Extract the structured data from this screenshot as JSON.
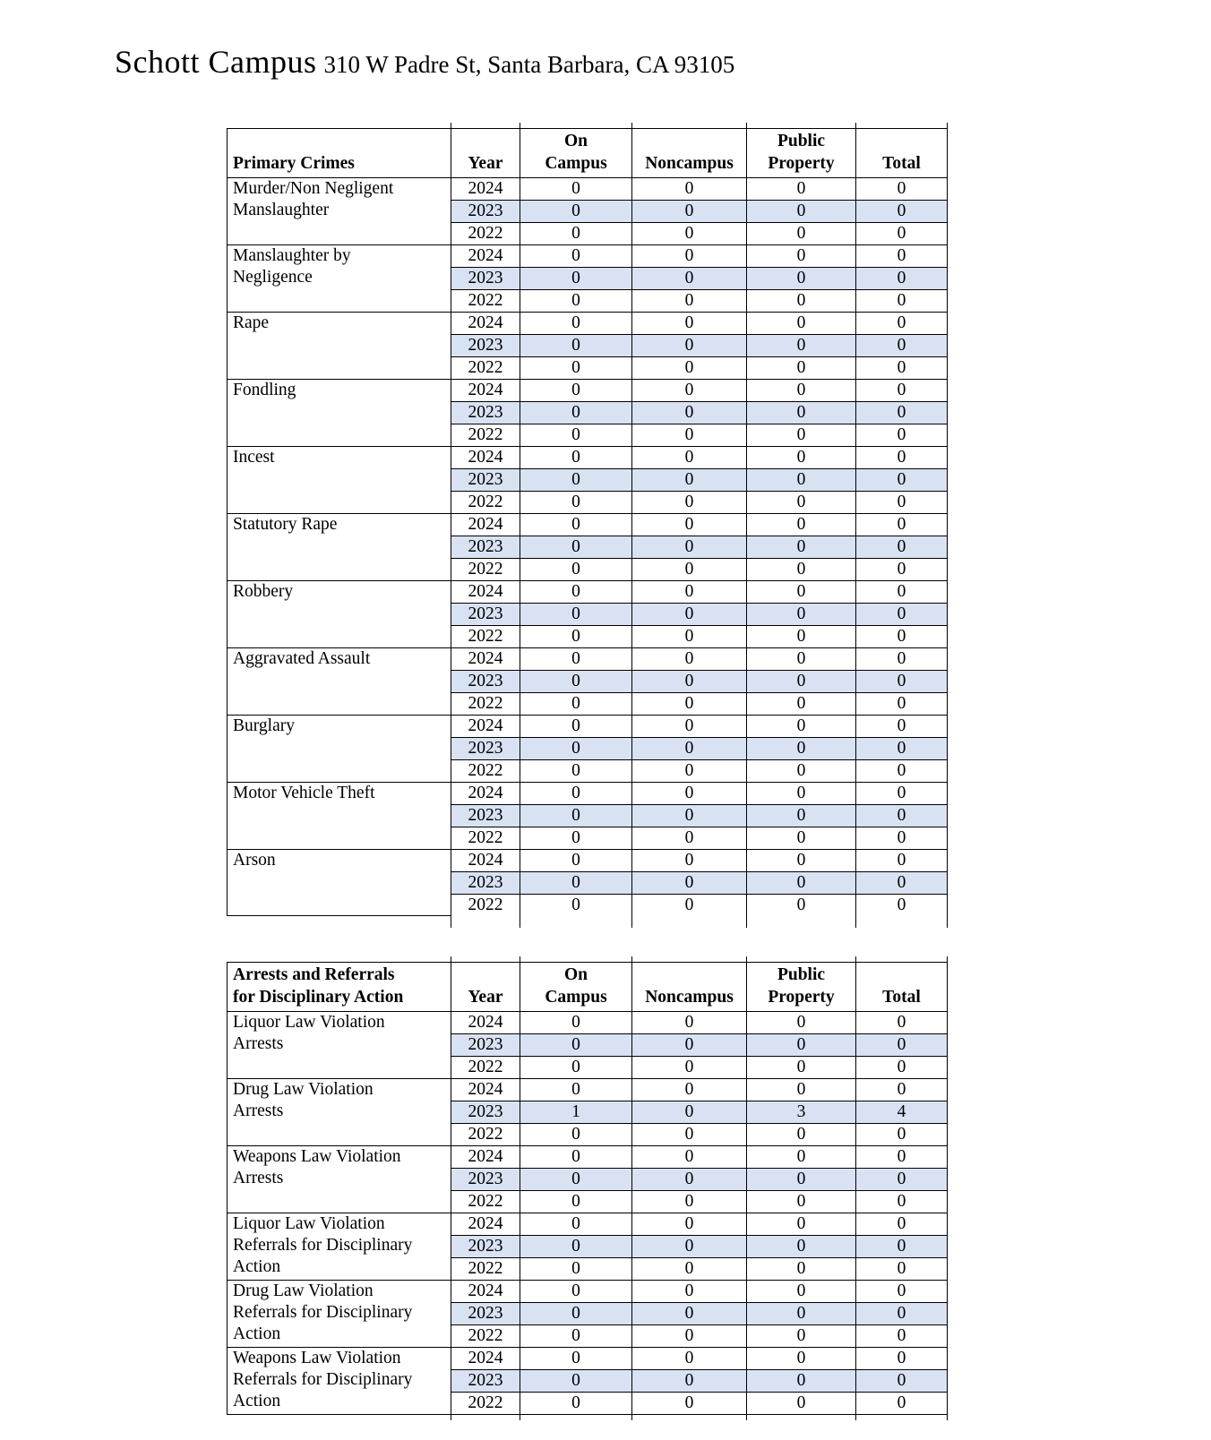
{
  "page_title": {
    "campus_name": "Schott Campus",
    "campus_address": "310 W Padre St, Santa Barbara, CA 93105"
  },
  "column_headers": [
    "Year",
    "On\nCampus",
    "Noncampus",
    "Public\nProperty",
    "Total"
  ],
  "colors": {
    "row_shade": "#d9e2f3",
    "border": "#000000",
    "text": "#000000"
  },
  "tables": [
    {
      "name": "primary-crimes",
      "row_header": "Primary Crimes",
      "groups": [
        {
          "category": "Murder/Non Negligent\nManslaughter",
          "rows": [
            [
              "2024",
              "0",
              "0",
              "0",
              "0"
            ],
            [
              "2023",
              "0",
              "0",
              "0",
              "0"
            ],
            [
              "2022",
              "0",
              "0",
              "0",
              "0"
            ]
          ]
        },
        {
          "category": "Manslaughter by\nNegligence",
          "rows": [
            [
              "2024",
              "0",
              "0",
              "0",
              "0"
            ],
            [
              "2023",
              "0",
              "0",
              "0",
              "0"
            ],
            [
              "2022",
              "0",
              "0",
              "0",
              "0"
            ]
          ]
        },
        {
          "category": "Rape",
          "rows": [
            [
              "2024",
              "0",
              "0",
              "0",
              "0"
            ],
            [
              "2023",
              "0",
              "0",
              "0",
              "0"
            ],
            [
              "2022",
              "0",
              "0",
              "0",
              "0"
            ]
          ]
        },
        {
          "category": "Fondling",
          "rows": [
            [
              "2024",
              "0",
              "0",
              "0",
              "0"
            ],
            [
              "2023",
              "0",
              "0",
              "0",
              "0"
            ],
            [
              "2022",
              "0",
              "0",
              "0",
              "0"
            ]
          ]
        },
        {
          "category": "Incest",
          "rows": [
            [
              "2024",
              "0",
              "0",
              "0",
              "0"
            ],
            [
              "2023",
              "0",
              "0",
              "0",
              "0"
            ],
            [
              "2022",
              "0",
              "0",
              "0",
              "0"
            ]
          ]
        },
        {
          "category": "Statutory Rape",
          "rows": [
            [
              "2024",
              "0",
              "0",
              "0",
              "0"
            ],
            [
              "2023",
              "0",
              "0",
              "0",
              "0"
            ],
            [
              "2022",
              "0",
              "0",
              "0",
              "0"
            ]
          ]
        },
        {
          "category": "Robbery",
          "rows": [
            [
              "2024",
              "0",
              "0",
              "0",
              "0"
            ],
            [
              "2023",
              "0",
              "0",
              "0",
              "0"
            ],
            [
              "2022",
              "0",
              "0",
              "0",
              "0"
            ]
          ]
        },
        {
          "category": "Aggravated Assault",
          "rows": [
            [
              "2024",
              "0",
              "0",
              "0",
              "0"
            ],
            [
              "2023",
              "0",
              "0",
              "0",
              "0"
            ],
            [
              "2022",
              "0",
              "0",
              "0",
              "0"
            ]
          ]
        },
        {
          "category": "Burglary",
          "rows": [
            [
              "2024",
              "0",
              "0",
              "0",
              "0"
            ],
            [
              "2023",
              "0",
              "0",
              "0",
              "0"
            ],
            [
              "2022",
              "0",
              "0",
              "0",
              "0"
            ]
          ]
        },
        {
          "category": "Motor Vehicle Theft",
          "rows": [
            [
              "2024",
              "0",
              "0",
              "0",
              "0"
            ],
            [
              "2023",
              "0",
              "0",
              "0",
              "0"
            ],
            [
              "2022",
              "0",
              "0",
              "0",
              "0"
            ]
          ]
        },
        {
          "category": "Arson",
          "rows": [
            [
              "2024",
              "0",
              "0",
              "0",
              "0"
            ],
            [
              "2023",
              "0",
              "0",
              "0",
              "0"
            ],
            [
              "2022",
              "0",
              "0",
              "0",
              "0"
            ]
          ]
        }
      ]
    },
    {
      "name": "arrests-and-referrals",
      "row_header": "Arrests and Referrals\nfor Disciplinary Action",
      "groups": [
        {
          "category": "Liquor Law Violation\nArrests",
          "rows": [
            [
              "2024",
              "0",
              "0",
              "0",
              "0"
            ],
            [
              "2023",
              "0",
              "0",
              "0",
              "0"
            ],
            [
              "2022",
              "0",
              "0",
              "0",
              "0"
            ]
          ]
        },
        {
          "category": "Drug Law Violation\nArrests",
          "rows": [
            [
              "2024",
              "0",
              "0",
              "0",
              "0"
            ],
            [
              "2023",
              "1",
              "0",
              "3",
              "4"
            ],
            [
              "2022",
              "0",
              "0",
              "0",
              "0"
            ]
          ]
        },
        {
          "category": "Weapons Law Violation\nArrests",
          "rows": [
            [
              "2024",
              "0",
              "0",
              "0",
              "0"
            ],
            [
              "2023",
              "0",
              "0",
              "0",
              "0"
            ],
            [
              "2022",
              "0",
              "0",
              "0",
              "0"
            ]
          ]
        },
        {
          "category": "Liquor Law Violation\nReferrals for Disciplinary\nAction",
          "rows": [
            [
              "2024",
              "0",
              "0",
              "0",
              "0"
            ],
            [
              "2023",
              "0",
              "0",
              "0",
              "0"
            ],
            [
              "2022",
              "0",
              "0",
              "0",
              "0"
            ]
          ]
        },
        {
          "category": "Drug Law Violation\nReferrals for Disciplinary\nAction",
          "rows": [
            [
              "2024",
              "0",
              "0",
              "0",
              "0"
            ],
            [
              "2023",
              "0",
              "0",
              "0",
              "0"
            ],
            [
              "2022",
              "0",
              "0",
              "0",
              "0"
            ]
          ]
        },
        {
          "category": "Weapons Law Violation\nReferrals for Disciplinary\nAction",
          "rows": [
            [
              "2024",
              "0",
              "0",
              "0",
              "0"
            ],
            [
              "2023",
              "0",
              "0",
              "0",
              "0"
            ],
            [
              "2022",
              "0",
              "0",
              "0",
              "0"
            ]
          ]
        }
      ]
    }
  ]
}
